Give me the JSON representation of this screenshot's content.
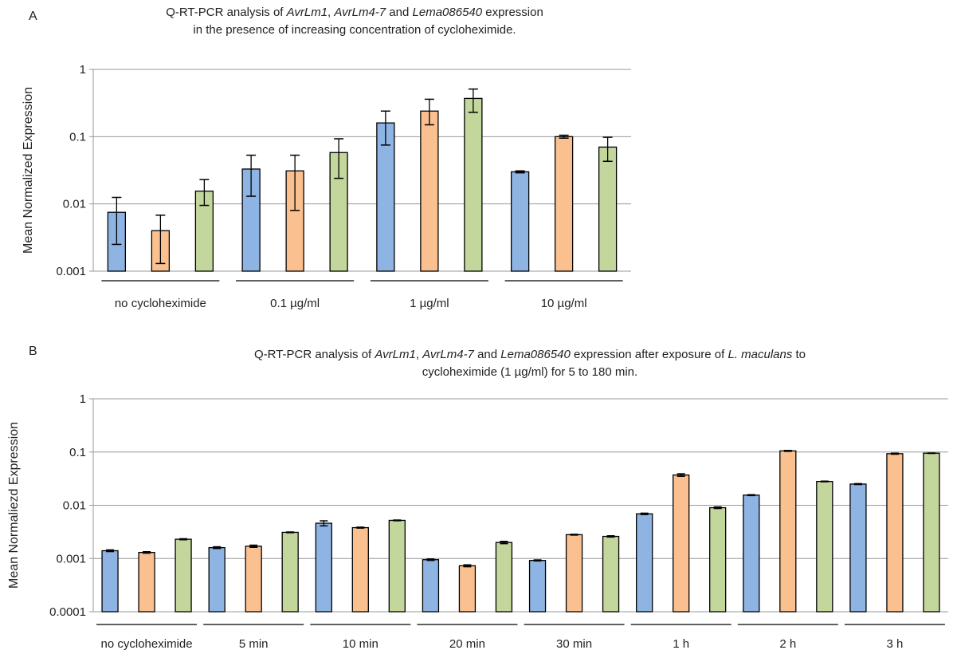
{
  "panels": [
    {
      "letter": "A",
      "title_parts": [
        {
          "t": "Q-RT-PCR analysis of ",
          "i": false
        },
        {
          "t": "AvrLm1",
          "i": true
        },
        {
          "t": ", ",
          "i": false
        },
        {
          "t": "AvrLm4-7",
          "i": true
        },
        {
          "t": " and ",
          "i": false
        },
        {
          "t": "Lema086540",
          "i": true
        },
        {
          "t": " expression",
          "i": false
        },
        {
          "t": "\n",
          "i": false
        },
        {
          "t": "in the presence of increasing concentration of cycloheximide.",
          "i": false
        }
      ]
    },
    {
      "letter": "B",
      "title_parts": [
        {
          "t": "Q-RT-PCR analysis of ",
          "i": false
        },
        {
          "t": "AvrLm1",
          "i": true
        },
        {
          "t": ", ",
          "i": false
        },
        {
          "t": "AvrLm4-7",
          "i": true
        },
        {
          "t": " and ",
          "i": false
        },
        {
          "t": "Lema086540",
          "i": true
        },
        {
          "t": " expression after exposure of ",
          "i": false
        },
        {
          "t": "L. maculans",
          "i": true
        },
        {
          "t": " to",
          "i": false
        },
        {
          "t": "\n",
          "i": false
        },
        {
          "t": "cycloheximide (1 µg/ml) for 5 to 180 min.",
          "i": false
        }
      ]
    }
  ],
  "colors": {
    "series1": "#8db4e2",
    "series2": "#fac090",
    "series3": "#c3d69b",
    "grid": "#999999",
    "outline": "#000000"
  },
  "chart_data": [
    {
      "type": "bar",
      "yscale": "log",
      "ylabel": "Mean Normalized Expression",
      "ylim": [
        0.001,
        1
      ],
      "yticks": [
        "0.001",
        "0.01",
        "0.1",
        "1"
      ],
      "categories": [
        "no cycloheximide",
        "0.1 µg/ml",
        "1 µg/ml",
        "10 µg/ml"
      ],
      "series": [
        {
          "values": [
            0.0075,
            0.033,
            0.16,
            0.03
          ],
          "err_low": [
            0.0025,
            0.013,
            0.075,
            0.029
          ],
          "err_high": [
            0.0125,
            0.053,
            0.24,
            0.031
          ]
        },
        {
          "values": [
            0.004,
            0.031,
            0.24,
            0.1
          ],
          "err_low": [
            0.0013,
            0.008,
            0.15,
            0.095
          ],
          "err_high": [
            0.0068,
            0.053,
            0.36,
            0.105
          ]
        },
        {
          "values": [
            0.0155,
            0.058,
            0.37,
            0.07
          ],
          "err_low": [
            0.0095,
            0.024,
            0.23,
            0.043
          ],
          "err_high": [
            0.023,
            0.093,
            0.51,
            0.098
          ]
        }
      ]
    },
    {
      "type": "bar",
      "yscale": "log",
      "ylabel": "Mean Normaliezd Expression",
      "ylim": [
        0.0001,
        1
      ],
      "yticks": [
        "0.0001",
        "0.001",
        "0.01",
        "0.1",
        "1"
      ],
      "categories": [
        "no cycloheximide",
        "5 min",
        "10 min",
        "20 min",
        "30 min",
        "1 h",
        "2 h",
        "3 h"
      ],
      "series": [
        {
          "values": [
            0.0014,
            0.0016,
            0.0046,
            0.00095,
            0.00092,
            0.0069,
            0.0155,
            0.025
          ],
          "err_low": [
            0.00135,
            0.00154,
            0.0041,
            0.00092,
            0.0009,
            0.0067,
            0.0152,
            0.0245
          ],
          "err_high": [
            0.00145,
            0.00166,
            0.0051,
            0.00098,
            0.00094,
            0.0071,
            0.0158,
            0.0255
          ]
        },
        {
          "values": [
            0.0013,
            0.0017,
            0.0038,
            0.00073,
            0.0028,
            0.037,
            0.105,
            0.093
          ],
          "err_low": [
            0.00126,
            0.00162,
            0.00372,
            0.0007,
            0.00275,
            0.035,
            0.103,
            0.091
          ],
          "err_high": [
            0.00134,
            0.00178,
            0.00388,
            0.00076,
            0.00285,
            0.039,
            0.107,
            0.095
          ]
        },
        {
          "values": [
            0.0023,
            0.0031,
            0.0052,
            0.002,
            0.0026,
            0.009,
            0.028,
            0.095
          ],
          "err_low": [
            0.00225,
            0.00305,
            0.00512,
            0.0019,
            0.00253,
            0.0087,
            0.0276,
            0.094
          ],
          "err_high": [
            0.00235,
            0.00315,
            0.00528,
            0.0021,
            0.00267,
            0.0093,
            0.0284,
            0.096
          ]
        }
      ]
    }
  ]
}
